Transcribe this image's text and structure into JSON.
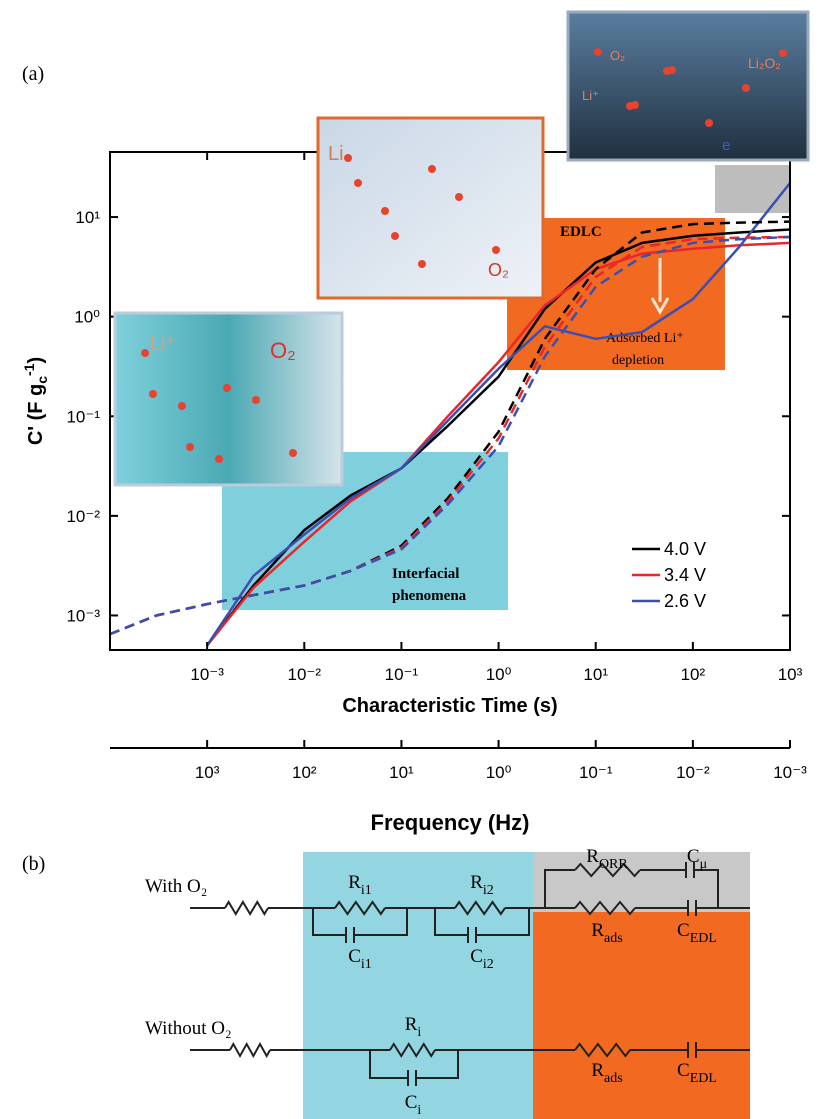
{
  "panel_a_label": "(a)",
  "chart_data": {
    "type": "line",
    "xlabel": "Characteristic Time (s)",
    "ylabel": {
      "text": "C' (F g",
      "sub": "c",
      "sup": "-1",
      "end": ")"
    },
    "log_x": true,
    "log_y": true,
    "x": [
      0.0001,
      0.0003,
      0.001,
      0.003,
      0.01,
      0.03,
      0.1,
      0.3,
      1,
      3,
      10,
      30,
      100,
      300,
      1000
    ],
    "xlim": [
      0.0001,
      1000
    ],
    "xticks": [
      {
        "value": 0.001,
        "label": "10⁻³"
      },
      {
        "value": 0.01,
        "label": "10⁻²"
      },
      {
        "value": 0.1,
        "label": "10⁻¹"
      },
      {
        "value": 1,
        "label": "10⁰"
      },
      {
        "value": 10,
        "label": "10¹"
      },
      {
        "value": 100,
        "label": "10²"
      },
      {
        "value": 1000,
        "label": "10³"
      }
    ],
    "ylim": [
      0.00045,
      45
    ],
    "yticks": [
      {
        "value": 0.001,
        "label": "10⁻³"
      },
      {
        "value": 0.01,
        "label": "10⁻²"
      },
      {
        "value": 0.1,
        "label": "10⁻¹"
      },
      {
        "value": 1,
        "label": "10⁰"
      },
      {
        "value": 10,
        "label": "10¹"
      }
    ],
    "series": [
      {
        "name": "4.0 V",
        "color": "#000000",
        "style": "solid",
        "values": [
          null,
          null,
          0.0005,
          0.002,
          0.0072,
          0.016,
          0.03,
          0.08,
          0.25,
          1.2,
          3.5,
          5.5,
          6.5,
          7,
          7.5
        ]
      },
      {
        "name": "3.4 V",
        "color": "#e8262b",
        "style": "solid",
        "values": [
          null,
          null,
          0.0005,
          0.0019,
          0.0055,
          0.014,
          0.03,
          0.1,
          0.35,
          1.3,
          3,
          4.3,
          4.8,
          5.2,
          5.5
        ]
      },
      {
        "name": "2.6 V",
        "color": "#3b4fb0",
        "style": "solid",
        "values": [
          null,
          null,
          0.0005,
          0.0025,
          0.0065,
          0.015,
          0.03,
          0.09,
          0.3,
          0.8,
          0.6,
          0.7,
          1.5,
          5,
          22
        ]
      },
      {
        "color": "#000000",
        "style": "dashed",
        "values": [
          0.00065,
          0.001,
          0.0013,
          0.0016,
          0.002,
          0.0028,
          0.005,
          0.015,
          0.07,
          0.6,
          3,
          7,
          8.5,
          8.8,
          9
        ]
      },
      {
        "color": "#e8262b",
        "style": "dashed",
        "values": [
          0.00065,
          0.001,
          0.0013,
          0.0016,
          0.002,
          0.0028,
          0.0048,
          0.014,
          0.06,
          0.5,
          2.5,
          5,
          6,
          6.2,
          6.3
        ]
      },
      {
        "color": "#3b4fb0",
        "style": "dashed",
        "values": [
          0.00065,
          0.001,
          0.0013,
          0.0016,
          0.002,
          0.0028,
          0.0046,
          0.013,
          0.05,
          0.4,
          2,
          4,
          5.5,
          6,
          6.3
        ]
      }
    ],
    "legend": "lower right",
    "x2label": "Frequency (Hz)",
    "x2lim": [
      10000,
      0.001
    ],
    "x2ticks": [
      {
        "value": 1000,
        "label": "10³"
      },
      {
        "value": 100,
        "label": "10²"
      },
      {
        "value": 10,
        "label": "10¹"
      },
      {
        "value": 1,
        "label": "10⁰"
      },
      {
        "value": 0.1,
        "label": "10⁻¹"
      },
      {
        "value": 0.01,
        "label": "10⁻²"
      },
      {
        "value": 0.001,
        "label": "10⁻³"
      }
    ],
    "annotations": [
      {
        "lines": [
          "EDLC"
        ]
      },
      {
        "lines": [
          "Adsorbed Li⁺",
          "depletion"
        ]
      },
      {
        "lines": [
          "Interfacial",
          "phenomena"
        ]
      }
    ]
  },
  "insets": [
    {
      "labels": [
        "Li⁺",
        "O₂"
      ]
    },
    {
      "labels": [
        "Li",
        "O₂"
      ]
    },
    {
      "labels": [
        "O₂",
        "Li⁺",
        "Li₂O₂",
        "e"
      ]
    }
  ],
  "circuit": {
    "panel_label": "(b)",
    "with_o2": {
      "label": "With O₂",
      "components": [
        {
          "sym": "R",
          "sub": "i1"
        },
        {
          "sym": "C",
          "sub": "i1"
        },
        {
          "sym": "R",
          "sub": "i2"
        },
        {
          "sym": "C",
          "sub": "i2"
        },
        {
          "sym": "R",
          "sub": "ORR"
        },
        {
          "sym": "C",
          "sub": "μ"
        },
        {
          "sym": "R",
          "sub": "ads"
        },
        {
          "sym": "C",
          "sub": "EDL"
        }
      ]
    },
    "without_o2": {
      "label": "Without O₂",
      "components": [
        {
          "sym": "R",
          "sub": "i"
        },
        {
          "sym": "C",
          "sub": "i"
        },
        {
          "sym": "R",
          "sub": "ads"
        },
        {
          "sym": "C",
          "sub": "EDL"
        }
      ]
    }
  }
}
